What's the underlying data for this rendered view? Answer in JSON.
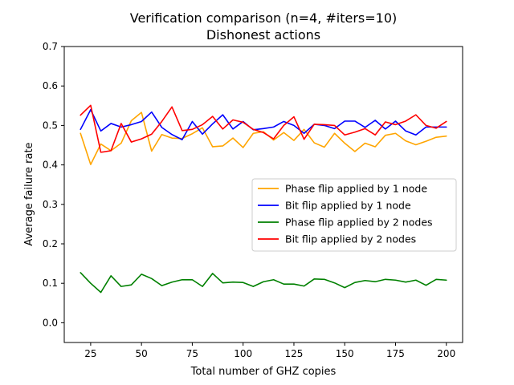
{
  "chart_data": {
    "type": "line",
    "title": "Verification comparison (n=4, #iters=10)",
    "subtitle": "Dishonest actions",
    "xlabel": "Total number of GHZ copies",
    "ylabel": "Average failure rate",
    "xlim": [
      12,
      208
    ],
    "ylim": [
      -0.05,
      0.7
    ],
    "x_ticks": [
      25,
      50,
      75,
      100,
      125,
      150,
      175,
      200
    ],
    "x_tick_labels": [
      "25",
      "50",
      "75",
      "100",
      "125",
      "150",
      "175",
      "200"
    ],
    "y_ticks": [
      0.0,
      0.1,
      0.2,
      0.3,
      0.4,
      0.5,
      0.6,
      0.7
    ],
    "y_tick_labels": [
      "0.0",
      "0.1",
      "0.2",
      "0.3",
      "0.4",
      "0.5",
      "0.6",
      "0.7"
    ],
    "grid": false,
    "legend_position": "center-right",
    "x": [
      20,
      25,
      30,
      35,
      40,
      45,
      50,
      55,
      60,
      65,
      70,
      75,
      80,
      85,
      90,
      95,
      100,
      105,
      110,
      115,
      120,
      125,
      130,
      135,
      140,
      145,
      150,
      155,
      160,
      165,
      170,
      175,
      180,
      185,
      190,
      195,
      200
    ],
    "series": [
      {
        "name": "Phase flip applied by 1 node",
        "color": "#ffa500",
        "values": [
          0.48,
          0.401,
          0.453,
          0.436,
          0.455,
          0.512,
          0.533,
          0.435,
          0.477,
          0.468,
          0.467,
          0.479,
          0.494,
          0.446,
          0.448,
          0.468,
          0.444,
          0.48,
          0.484,
          0.463,
          0.482,
          0.462,
          0.49,
          0.456,
          0.445,
          0.48,
          0.455,
          0.434,
          0.455,
          0.446,
          0.475,
          0.48,
          0.461,
          0.451,
          0.46,
          0.47,
          0.473
        ]
      },
      {
        "name": "Bit flip applied by 1 node",
        "color": "#0000ff",
        "values": [
          0.49,
          0.54,
          0.486,
          0.505,
          0.496,
          0.502,
          0.51,
          0.534,
          0.495,
          0.477,
          0.464,
          0.51,
          0.478,
          0.504,
          0.527,
          0.491,
          0.51,
          0.489,
          0.492,
          0.496,
          0.51,
          0.5,
          0.48,
          0.503,
          0.5,
          0.492,
          0.511,
          0.511,
          0.495,
          0.513,
          0.491,
          0.511,
          0.486,
          0.476,
          0.496,
          0.496,
          0.496
        ]
      },
      {
        "name": "Phase flip applied by 2 nodes",
        "color": "#008000",
        "values": [
          0.127,
          0.1,
          0.077,
          0.119,
          0.092,
          0.096,
          0.123,
          0.112,
          0.094,
          0.103,
          0.109,
          0.109,
          0.092,
          0.125,
          0.101,
          0.103,
          0.102,
          0.092,
          0.104,
          0.109,
          0.098,
          0.098,
          0.093,
          0.111,
          0.11,
          0.101,
          0.089,
          0.102,
          0.107,
          0.104,
          0.11,
          0.108,
          0.103,
          0.108,
          0.095,
          0.11,
          0.108
        ]
      },
      {
        "name": "Bit flip applied by 2 nodes",
        "color": "#ff0000",
        "values": [
          0.526,
          0.551,
          0.432,
          0.436,
          0.505,
          0.458,
          0.466,
          0.478,
          0.51,
          0.547,
          0.487,
          0.49,
          0.502,
          0.523,
          0.491,
          0.514,
          0.508,
          0.49,
          0.482,
          0.466,
          0.5,
          0.522,
          0.465,
          0.503,
          0.502,
          0.5,
          0.476,
          0.483,
          0.492,
          0.476,
          0.509,
          0.502,
          0.511,
          0.527,
          0.5,
          0.493,
          0.51
        ]
      }
    ]
  }
}
